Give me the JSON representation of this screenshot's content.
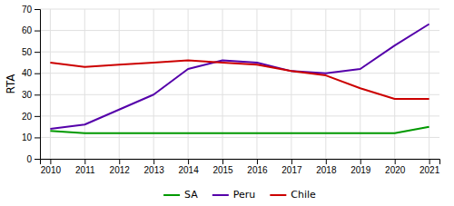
{
  "chart_data": {
    "type": "line",
    "x": [
      2010,
      2011,
      2012,
      2013,
      2014,
      2015,
      2016,
      2017,
      2018,
      2019,
      2020,
      2021
    ],
    "series": [
      {
        "name": "SA",
        "color": "#009900",
        "values": [
          13,
          12,
          12,
          12,
          12,
          12,
          12,
          12,
          12,
          12,
          12,
          15
        ]
      },
      {
        "name": "Peru",
        "color": "#5500AA",
        "values": [
          14,
          16,
          23,
          30,
          42,
          46,
          45,
          41,
          40,
          42,
          53,
          63
        ]
      },
      {
        "name": "Chile",
        "color": "#CC0000",
        "values": [
          45,
          43,
          44,
          45,
          46,
          45,
          44,
          41,
          39,
          33,
          28,
          28
        ]
      }
    ],
    "ylabel": "RTA",
    "xlim": [
      2009.7,
      2021.3
    ],
    "xticks": [
      2010,
      2011,
      2012,
      2013,
      2014,
      2015,
      2016,
      2017,
      2018,
      2019,
      2020,
      2021
    ],
    "ylim": [
      0,
      70
    ],
    "yticks": [
      0,
      10,
      20,
      30,
      40,
      50,
      60,
      70
    ],
    "grid": true,
    "legend": "bottom"
  }
}
